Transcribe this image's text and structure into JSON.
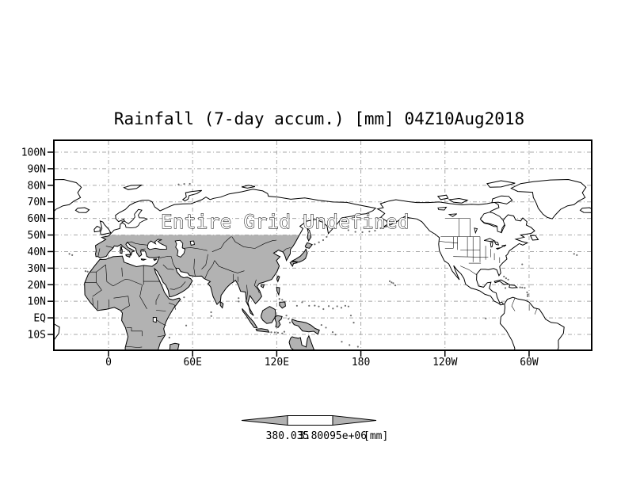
{
  "title": "Rainfall (7-day accum.) [mm] 04Z10Aug2018",
  "overlay_message": "Entire Grid Undefined",
  "y_axis": {
    "labels": [
      "100N",
      "90N",
      "80N",
      "70N",
      "60N",
      "50N",
      "40N",
      "30N",
      "20N",
      "10N",
      "EQ",
      "10S"
    ]
  },
  "x_axis": {
    "labels": [
      "0",
      "60E",
      "120E",
      "180",
      "120W",
      "60W"
    ]
  },
  "colorbar": {
    "min_label": "380.035",
    "max_label": "3.80095e+06",
    "units": "[mm]"
  },
  "colors": {
    "background": "#ffffff",
    "land_fill": "#b2b2b2",
    "coastline": "#000000",
    "grid_line": "#a8a8a8",
    "frame": "#000000",
    "text": "#000000",
    "colorbar_arrow_fill": "#b2b2b2",
    "colorbar_box_fill": "#ffffff",
    "speck": "#6e6e6e"
  },
  "chart_data": {
    "type": "map",
    "title": "Rainfall (7-day accum.) [mm] 04Z10Aug2018",
    "variable": "Rainfall (7-day accum.)",
    "units": "mm",
    "valid_time": "04Z10Aug2018",
    "status": "Entire Grid Undefined",
    "projection": "equidistant cylindrical (lat/lon)",
    "lat_ticks": [
      "100N",
      "90N",
      "80N",
      "70N",
      "60N",
      "50N",
      "40N",
      "30N",
      "20N",
      "10N",
      "EQ",
      "10S"
    ],
    "lon_ticks": [
      "0",
      "60E",
      "120E",
      "180",
      "120W",
      "60W"
    ],
    "graticule": "dashed gray lines at 10 deg latitude / 60 deg longitude",
    "legend_position": "bottom-center double-arrow colorbar",
    "colorbar": {
      "min_label": "380.035",
      "max_label": "3.80095e+06",
      "units": "[mm]"
    },
    "data_points": [],
    "note": "No field values rendered - entire grid undefined; basemap shows gray land fill over Africa/Eurasia south of 50N"
  }
}
